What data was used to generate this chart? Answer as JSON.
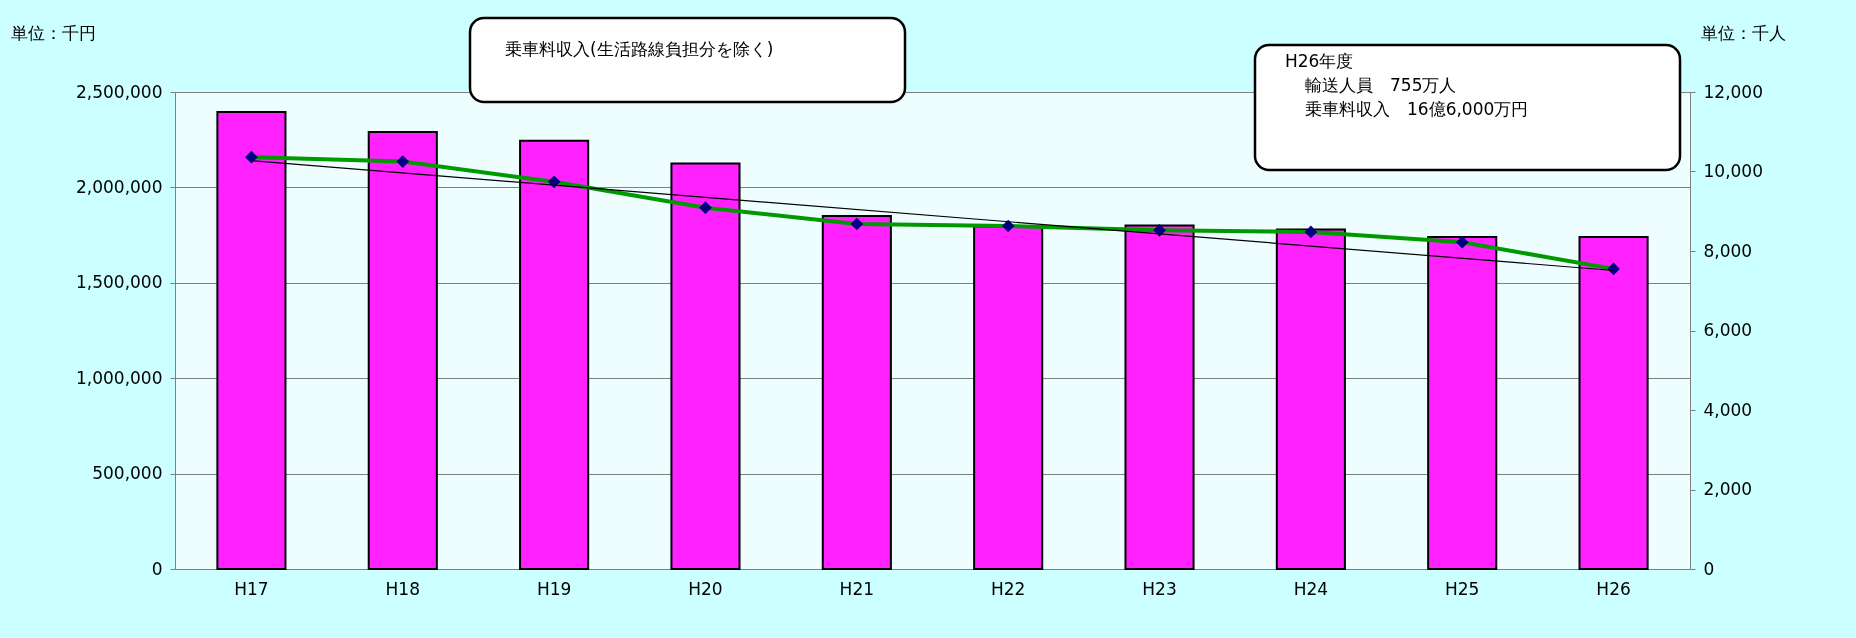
{
  "chart_data": {
    "type": "bar",
    "categories": [
      "H17",
      "H18",
      "H19",
      "H20",
      "H21",
      "H22",
      "H23",
      "H24",
      "H25",
      "H26"
    ],
    "ylabel": "単位：千円",
    "y2label": "単位：千人",
    "series": [
      {
        "color": "#ff22ff",
        "values": [
          2395000,
          2290000,
          2245000,
          2125000,
          1850000,
          1795000,
          1800000,
          1780000,
          1740000,
          1740000
        ]
      },
      {
        "type": "line",
        "axis": "y2",
        "color": "#009900",
        "marker": "diamond",
        "values": [
          10360,
          10250,
          9740,
          9090,
          8680,
          8630,
          8520,
          8480,
          8220,
          7550
        ]
      },
      {
        "type": "line",
        "axis": "y2",
        "color": "#000000",
        "x": [
          "H17",
          "H26"
        ],
        "values": [
          10270,
          7510
        ]
      }
    ],
    "ylim": [
      0,
      2500000
    ],
    "yticks": [
      {
        "value": 0,
        "label": "0"
      },
      {
        "value": 500000,
        "label": "500,000"
      },
      {
        "value": 1000000,
        "label": "1,000,000"
      },
      {
        "value": 1500000,
        "label": "1,500,000"
      },
      {
        "value": 2000000,
        "label": "2,000,000"
      },
      {
        "value": 2500000,
        "label": "2,500,000"
      }
    ],
    "y2lim": [
      0,
      12000
    ],
    "y2ticks": [
      {
        "value": 0,
        "label": "0"
      },
      {
        "value": 2000,
        "label": "2,000"
      },
      {
        "value": 4000,
        "label": "4,000"
      },
      {
        "value": 6000,
        "label": "6,000"
      },
      {
        "value": 8000,
        "label": "8,000"
      },
      {
        "value": 10000,
        "label": "10,000"
      },
      {
        "value": 12000,
        "label": "12,000"
      }
    ],
    "grid": "y",
    "annotations": [
      "乗車料収入(生活路線負担分を除く)",
      "H26年度",
      "輸送人員　755万人",
      "乗車料収入　16億6,000万円"
    ]
  }
}
